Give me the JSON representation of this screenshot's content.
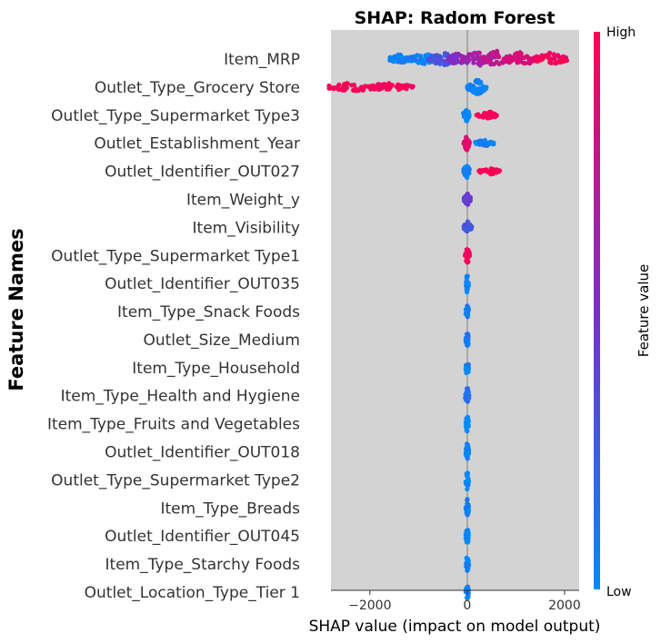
{
  "chart_data": {
    "type": "scatter",
    "title": "SHAP: Radom Forest",
    "xlabel": "SHAP value (impact on model output)",
    "ylabel": "Feature Names",
    "xlim": [
      -2800,
      2300
    ],
    "xticks": [
      -2000,
      0,
      2000
    ],
    "xtick_labels": [
      "−2000",
      "0",
      "2000"
    ],
    "colorbar": {
      "label": "Feature value",
      "high": "High",
      "low": "Low"
    },
    "colors": {
      "low": "#008bfb",
      "mid": "#7a2ecb",
      "high": "#ff0052",
      "plot_bg": "#d3d3d3",
      "zero_line": "#999999"
    },
    "features": [
      {
        "name": "Item_MRP",
        "clusters": [
          {
            "x": -1400,
            "v": 0.05,
            "n": 4,
            "w": 200,
            "h": 6
          },
          {
            "x": -900,
            "v": 0.08,
            "n": 4,
            "w": 300,
            "h": 7
          },
          {
            "x": -500,
            "v": 0.3,
            "n": 4,
            "w": 300,
            "h": 8
          },
          {
            "x": -200,
            "v": 0.55,
            "n": 3,
            "w": 200,
            "h": 7
          },
          {
            "x": 200,
            "v": 0.65,
            "n": 4,
            "w": 300,
            "h": 9
          },
          {
            "x": 600,
            "v": 0.75,
            "n": 4,
            "w": 350,
            "h": 9
          },
          {
            "x": 1100,
            "v": 0.85,
            "n": 4,
            "w": 350,
            "h": 8
          },
          {
            "x": 1700,
            "v": 0.97,
            "n": 4,
            "w": 350,
            "h": 7
          }
        ]
      },
      {
        "name": "Outlet_Type_Grocery Store",
        "clusters": [
          {
            "x": -2350,
            "v": 0.98,
            "n": 4,
            "w": 550,
            "h": 5
          },
          {
            "x": -1600,
            "v": 0.98,
            "n": 4,
            "w": 500,
            "h": 5
          },
          {
            "x": 200,
            "v": 0.02,
            "n": 4,
            "w": 200,
            "h": 9
          }
        ]
      },
      {
        "name": "Outlet_Type_Supermarket Type3",
        "clusters": [
          {
            "x": -20,
            "v": 0.02,
            "n": 3,
            "w": 60,
            "h": 9
          },
          {
            "x": 450,
            "v": 0.98,
            "n": 3,
            "w": 260,
            "h": 4
          }
        ]
      },
      {
        "name": "Outlet_Establishment_Year",
        "clusters": [
          {
            "x": -10,
            "v": 0.9,
            "n": 3,
            "w": 60,
            "h": 8
          },
          {
            "x": 350,
            "v": 0.05,
            "n": 3,
            "w": 200,
            "h": 4
          }
        ]
      },
      {
        "name": "Outlet_Identifier_OUT027",
        "clusters": [
          {
            "x": -15,
            "v": 0.02,
            "n": 3,
            "w": 60,
            "h": 9
          },
          {
            "x": 450,
            "v": 0.98,
            "n": 3,
            "w": 220,
            "h": 4
          }
        ]
      },
      {
        "name": "Item_Weight_y",
        "clusters": [
          {
            "x": 0,
            "v": 0.45,
            "n": 3,
            "w": 70,
            "h": 7
          }
        ]
      },
      {
        "name": "Item_Visibility",
        "clusters": [
          {
            "x": 10,
            "v": 0.3,
            "n": 3,
            "w": 80,
            "h": 7
          }
        ]
      },
      {
        "name": "Outlet_Type_Supermarket Type1",
        "clusters": [
          {
            "x": 0,
            "v": 0.97,
            "n": 2,
            "w": 50,
            "h": 10
          }
        ]
      },
      {
        "name": "Outlet_Identifier_OUT035",
        "clusters": [
          {
            "x": 0,
            "v": 0.02,
            "n": 2,
            "w": 30,
            "h": 11
          }
        ]
      },
      {
        "name": "Item_Type_Snack Foods",
        "clusters": [
          {
            "x": 0,
            "v": 0.1,
            "n": 2,
            "w": 30,
            "h": 11
          }
        ]
      },
      {
        "name": "Outlet_Size_Medium",
        "clusters": [
          {
            "x": 0,
            "v": 0.1,
            "n": 2,
            "w": 30,
            "h": 11
          }
        ]
      },
      {
        "name": "Item_Type_Household",
        "clusters": [
          {
            "x": 0,
            "v": 0.02,
            "n": 2,
            "w": 30,
            "h": 11
          }
        ]
      },
      {
        "name": "Item_Type_Health and Hygiene",
        "clusters": [
          {
            "x": 0,
            "v": 0.1,
            "n": 2,
            "w": 40,
            "h": 11
          }
        ]
      },
      {
        "name": "Item_Type_Fruits and Vegetables",
        "clusters": [
          {
            "x": 0,
            "v": 0.02,
            "n": 2,
            "w": 30,
            "h": 11
          }
        ]
      },
      {
        "name": "Outlet_Identifier_OUT018",
        "clusters": [
          {
            "x": 0,
            "v": 0.05,
            "n": 2,
            "w": 30,
            "h": 11
          }
        ]
      },
      {
        "name": "Outlet_Type_Supermarket Type2",
        "clusters": [
          {
            "x": 0,
            "v": 0.02,
            "n": 2,
            "w": 30,
            "h": 11
          }
        ]
      },
      {
        "name": "Item_Type_Breads",
        "clusters": [
          {
            "x": 0,
            "v": 0.05,
            "n": 2,
            "w": 30,
            "h": 11
          }
        ]
      },
      {
        "name": "Outlet_Identifier_OUT045",
        "clusters": [
          {
            "x": 0,
            "v": 0.02,
            "n": 2,
            "w": 30,
            "h": 11
          }
        ]
      },
      {
        "name": "Item_Type_Starchy Foods",
        "clusters": [
          {
            "x": 0,
            "v": 0.02,
            "n": 2,
            "w": 30,
            "h": 11
          }
        ]
      },
      {
        "name": "Outlet_Location_Type_Tier 1",
        "clusters": [
          {
            "x": 0,
            "v": 0.02,
            "n": 2,
            "w": 30,
            "h": 11
          }
        ]
      }
    ]
  }
}
